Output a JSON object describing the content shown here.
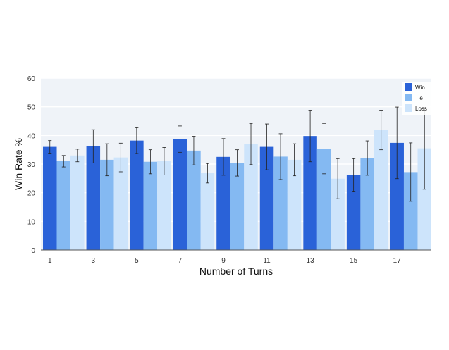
{
  "chart_data": {
    "type": "bar",
    "title": "",
    "xlabel": "Number of Turns",
    "ylabel": "Win Rate %",
    "categories": [
      "1",
      "3",
      "5",
      "7",
      "9",
      "11",
      "13",
      "15",
      "17"
    ],
    "ylim": [
      0,
      60
    ],
    "yticks": [
      0,
      10,
      20,
      30,
      40,
      50,
      60
    ],
    "grid": true,
    "legend_position": "top-right",
    "series": [
      {
        "name": "Win",
        "color": "#2a62d8",
        "values": [
          36,
          36.2,
          38.2,
          38.7,
          32.5,
          36,
          39.8,
          26.2,
          37.4
        ],
        "errors": [
          2.2,
          5.8,
          4.5,
          4.6,
          6.4,
          8,
          9,
          5.7,
          12.5
        ]
      },
      {
        "name": "Tie",
        "color": "#84b9f2",
        "values": [
          31,
          31.5,
          30.8,
          34.7,
          30.4,
          32.6,
          35.4,
          32.1,
          27.2
        ],
        "errors": [
          2,
          5.6,
          4.2,
          5,
          4.6,
          8,
          8.8,
          6,
          10.2
        ]
      },
      {
        "name": "Loss",
        "color": "#cde4fb",
        "values": [
          33,
          32.3,
          31,
          26.8,
          37,
          31.5,
          24.9,
          41.9,
          35.5
        ],
        "errors": [
          2.2,
          5,
          4.8,
          3.4,
          7.2,
          5.6,
          7,
          6.9,
          14.3
        ]
      }
    ]
  }
}
